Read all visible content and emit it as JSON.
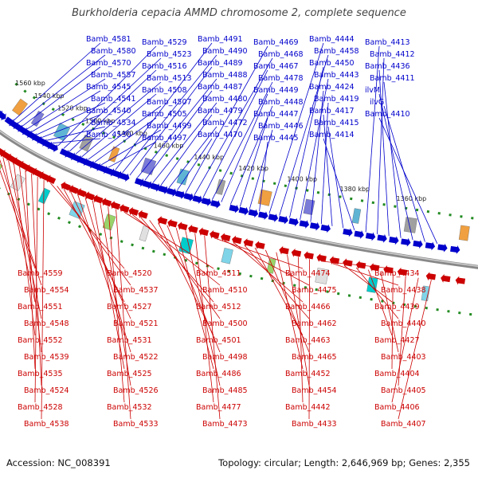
{
  "title": "Burkholderia cepacia AMMD chromosome 2, complete sequence",
  "footer": {
    "accession": "Accession: NC_008391",
    "summary": "Topology: circular; Length: 2,646,969 bp; Genes: 2,355"
  },
  "colors": {
    "forward": "#0000cc",
    "reverse": "#cc0000",
    "backbone": "#888888",
    "tick": "#228b22"
  },
  "scale_ticks": [
    "1560 kbp",
    "1540 kbp",
    "1520 kbp",
    "1500 kbp",
    "1480 kbp",
    "1460 kbp",
    "1440 kbp",
    "1420 kbp",
    "1400 kbp",
    "1380 kbp",
    "1360 kbp"
  ],
  "forward_labels": [
    "Bamb_4581",
    "Bamb_4580",
    "Bamb_4570",
    "Bamb_4557",
    "Bamb_4545",
    "Bamb_4541",
    "Bamb_4540",
    "Bamb_4534",
    "Bamb_4530",
    "Bamb_4529",
    "Bamb_4523",
    "Bamb_4516",
    "Bamb_4513",
    "Bamb_4508",
    "Bamb_4507",
    "Bamb_4505",
    "Bamb_4499",
    "Bamb_4497",
    "Bamb_4491",
    "Bamb_4490",
    "Bamb_4489",
    "Bamb_4488",
    "Bamb_4487",
    "Bamb_4480",
    "Bamb_4479",
    "Bamb_4472",
    "Bamb_4470",
    "Bamb_4469",
    "Bamb_4468",
    "Bamb_4467",
    "Bamb_4478",
    "Bamb_4449",
    "Bamb_4448",
    "Bamb_4447",
    "Bamb_4446",
    "Bamb_4445",
    "Bamb_4444",
    "Bamb_4458",
    "Bamb_4450",
    "Bamb_4443",
    "Bamb_4424",
    "Bamb_4419",
    "Bamb_4417",
    "Bamb_4415",
    "Bamb_4414",
    "Bamb_4413",
    "Bamb_4412",
    "Bamb_4436",
    "Bamb_4411",
    "ilvM",
    "ilvG",
    "Bamb_4410"
  ],
  "reverse_labels": [
    "Bamb_4559",
    "Bamb_4554",
    "Bamb_4551",
    "Bamb_4548",
    "Bamb_4552",
    "Bamb_4539",
    "Bamb_4535",
    "Bamb_4524",
    "Bamb_4528",
    "Bamb_4538",
    "Bamb_4520",
    "Bamb_4537",
    "Bamb_4527",
    "Bamb_4521",
    "Bamb_4531",
    "Bamb_4522",
    "Bamb_4525",
    "Bamb_4526",
    "Bamb_4532",
    "Bamb_4533",
    "Bamb_4511",
    "Bamb_4510",
    "Bamb_4512",
    "Bamb_4500",
    "Bamb_4501",
    "Bamb_4498",
    "Bamb_4486",
    "Bamb_4485",
    "Bamb_4477",
    "Bamb_4473",
    "Bamb_4474",
    "Bamb_4475",
    "Bamb_4466",
    "Bamb_4462",
    "Bamb_4463",
    "Bamb_4465",
    "Bamb_4452",
    "Bamb_4454",
    "Bamb_4442",
    "Bamb_4433",
    "Bamb_4434",
    "Bamb_4438",
    "Bamb_4439",
    "Bamb_4440",
    "Bamb_4427",
    "Bamb_4403",
    "Bamb_4404",
    "Bamb_4405",
    "Bamb_4406",
    "Bamb_4407"
  ]
}
